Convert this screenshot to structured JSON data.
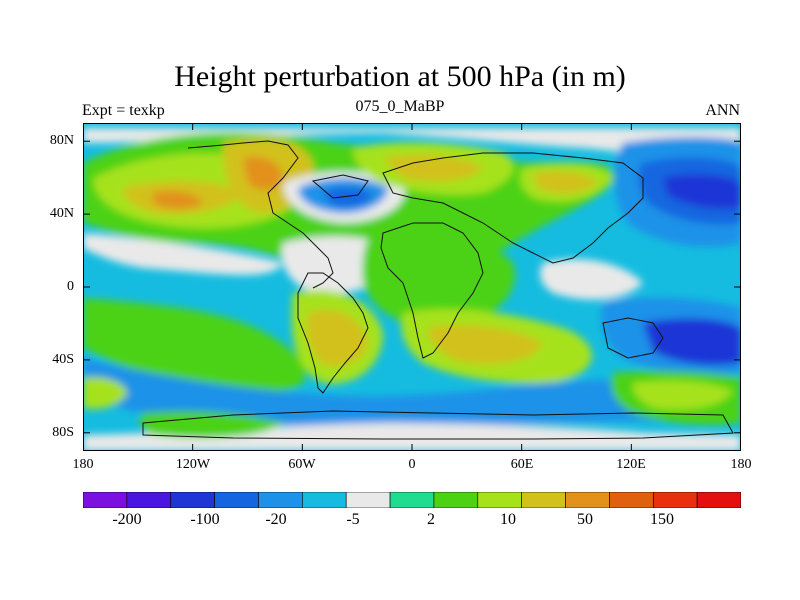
{
  "title": "Height perturbation at 500 hPa (in m)",
  "left_subtitle": "Expt = texkp",
  "center_subtitle": "075_0_MaBP",
  "right_subtitle": "ANN",
  "y_ticks": [
    "80N",
    "40N",
    "0",
    "40S",
    "80S"
  ],
  "y_tick_values": [
    80,
    40,
    0,
    -40,
    -80
  ],
  "x_ticks": [
    "180",
    "120W",
    "60W",
    "0",
    "60E",
    "120E",
    "180"
  ],
  "x_tick_values": [
    -180,
    -120,
    -60,
    0,
    60,
    120,
    180
  ],
  "colorbar": {
    "colors": [
      "#7b10e0",
      "#4a17e0",
      "#1f35d6",
      "#1466e0",
      "#1d92e8",
      "#15bce0",
      "#e9e9e9",
      "#1fdc8e",
      "#4cd212",
      "#a6e21a",
      "#d2c11a",
      "#e2911a",
      "#e0600e",
      "#e8300f",
      "#e40f0f"
    ],
    "labels": [
      "-200",
      "-100",
      "-20",
      "-5",
      "2",
      "10",
      "50",
      "150"
    ]
  },
  "chart_data": {
    "type": "heatmap",
    "title": "Height perturbation at 500 hPa (in m)",
    "subtitle": "075_0_MaBP",
    "xlim": [
      -180,
      180
    ],
    "ylim": [
      -90,
      90
    ],
    "xticks": [
      "180",
      "120W",
      "60W",
      "0",
      "60E",
      "120E",
      "180"
    ],
    "yticks": [
      "80N",
      "40N",
      "0",
      "40S",
      "80S"
    ],
    "colorbar_labels": [
      "-200",
      "-100",
      "-20",
      "-5",
      "2",
      "10",
      "50",
      "150"
    ],
    "fields": [
      {
        "lon": -120,
        "lat": 45,
        "value": 80
      },
      {
        "lon": -75,
        "lat": 55,
        "value": 90
      },
      {
        "lon": -20,
        "lat": 45,
        "value": -60
      },
      {
        "lon": 30,
        "lat": 60,
        "value": 70
      },
      {
        "lon": 90,
        "lat": 50,
        "value": 60
      },
      {
        "lon": 150,
        "lat": 50,
        "value": -120
      },
      {
        "lon": 145,
        "lat": -40,
        "value": -110
      },
      {
        "lon": -60,
        "lat": -30,
        "value": 60
      },
      {
        "lon": 40,
        "lat": -40,
        "value": 50
      },
      {
        "lon": -10,
        "lat": 10,
        "value": 25
      }
    ]
  }
}
